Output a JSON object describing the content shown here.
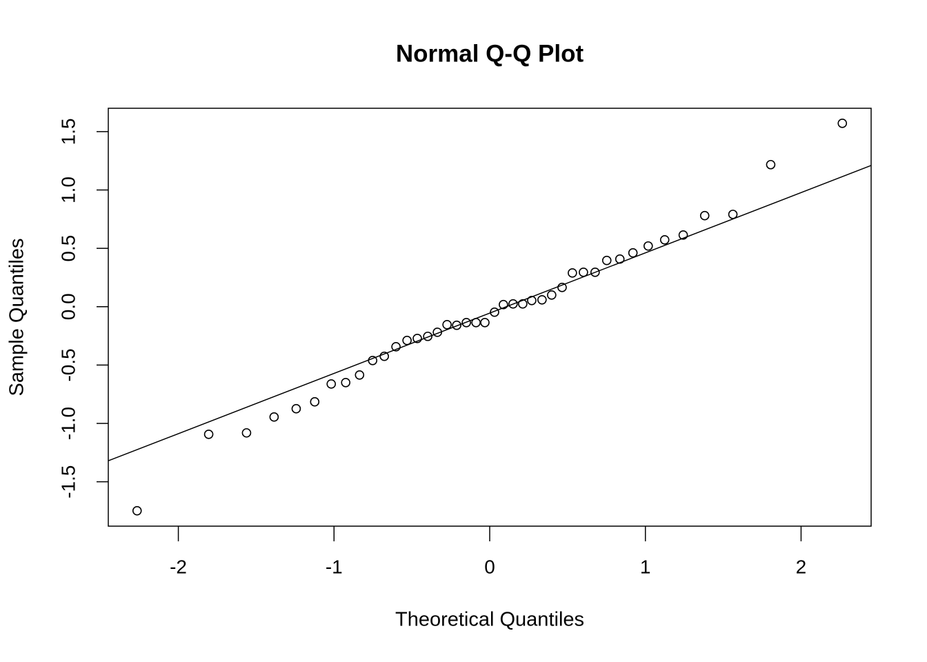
{
  "chart_data": {
    "type": "scatter",
    "title": "Normal Q-Q Plot",
    "x_label": "Theoretical Quantiles",
    "y_label": "Sample Quantiles",
    "x": [
      -2.265,
      -1.805,
      -1.562,
      -1.385,
      -1.243,
      -1.124,
      -1.018,
      -0.925,
      -0.836,
      -0.752,
      -0.677,
      -0.602,
      -0.531,
      -0.465,
      -0.398,
      -0.336,
      -0.274,
      -0.212,
      -0.15,
      -0.088,
      -0.031,
      0.031,
      0.088,
      0.15,
      0.212,
      0.27,
      0.336,
      0.398,
      0.465,
      0.531,
      0.602,
      0.677,
      0.752,
      0.836,
      0.92,
      1.018,
      1.124,
      1.243,
      1.381,
      1.562,
      1.805,
      2.265
    ],
    "values": [
      -1.748,
      -1.093,
      -1.081,
      -0.945,
      -0.874,
      -0.815,
      -0.662,
      -0.65,
      -0.585,
      -0.461,
      -0.425,
      -0.343,
      -0.289,
      -0.272,
      -0.254,
      -0.219,
      -0.154,
      -0.159,
      -0.136,
      -0.136,
      -0.136,
      -0.047,
      0.018,
      0.024,
      0.024,
      0.053,
      0.059,
      0.1,
      0.165,
      0.289,
      0.295,
      0.295,
      0.396,
      0.408,
      0.461,
      0.52,
      0.573,
      0.614,
      0.78,
      0.791,
      1.217,
      1.571
    ],
    "color": "#000000",
    "reference_line": {
      "x": [
        -2.45,
        2.45
      ],
      "y": [
        -1.32,
        1.21
      ]
    },
    "xlim": [
      -2.45,
      2.45
    ],
    "ylim": [
      -1.88,
      1.7
    ],
    "xticks": [
      -2,
      -1,
      0,
      1,
      2
    ],
    "yticks": [
      -1.5,
      {
        "value": -1,
        "label": "-1.0"
      },
      -0.5,
      {
        "value": 0,
        "label": "0.0"
      },
      0.5,
      {
        "value": 1,
        "label": "1.0"
      },
      1.5
    ]
  }
}
